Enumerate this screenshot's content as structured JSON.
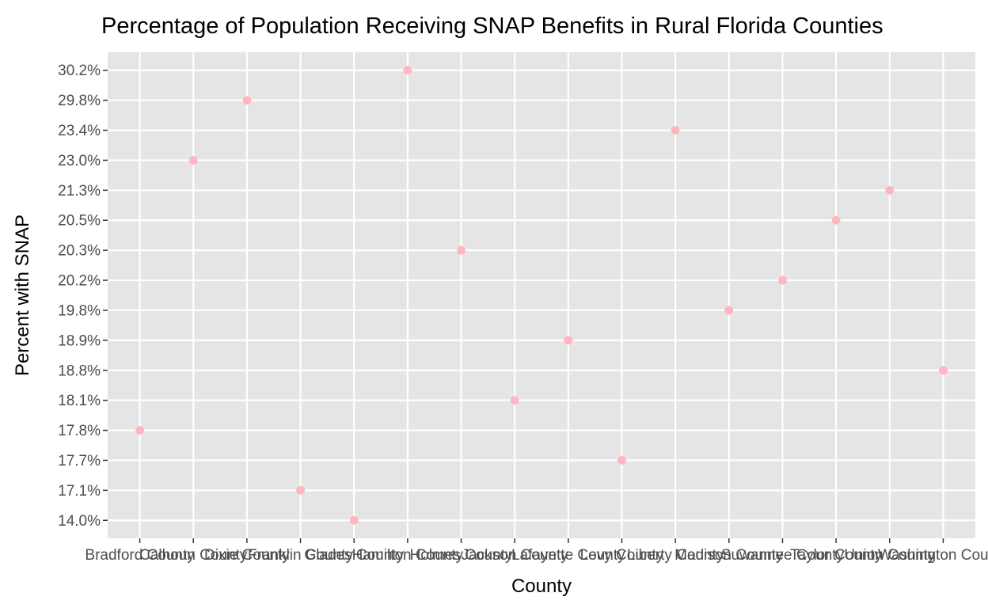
{
  "chart_data": {
    "type": "scatter",
    "title": "Percentage of Population Receiving SNAP Benefits in Rural Florida Counties",
    "xlabel": "County",
    "ylabel": "Percent with SNAP",
    "x_scale": "categorical",
    "y_scale": "categorical (ordered by value)",
    "categories": [
      "Bradford County",
      "Calhoun County",
      "Dixie County",
      "Franklin County",
      "Glades County",
      "Hamilton County",
      "Holmes County",
      "Jackson County",
      "Lafayette County",
      "Levy County",
      "Liberty County",
      "Madison County",
      "Suwannee County",
      "Taylor County",
      "Union County",
      "Washington County"
    ],
    "y_levels": [
      "14.0%",
      "17.1%",
      "17.7%",
      "17.8%",
      "18.1%",
      "18.8%",
      "18.9%",
      "19.8%",
      "20.2%",
      "20.3%",
      "20.5%",
      "21.3%",
      "23.0%",
      "23.4%",
      "29.8%",
      "30.2%"
    ],
    "values": [
      "17.8%",
      "23.0%",
      "29.8%",
      "17.1%",
      "14.0%",
      "30.2%",
      "20.3%",
      "18.1%",
      "18.9%",
      "17.7%",
      "23.4%",
      "19.8%",
      "20.2%",
      "20.5%",
      "21.3%",
      "18.8%"
    ],
    "point_color": "#ffb6c1",
    "panel_background": "#e5e5e5",
    "grid_color": "#ffffff",
    "grid": true,
    "legend": "none"
  }
}
